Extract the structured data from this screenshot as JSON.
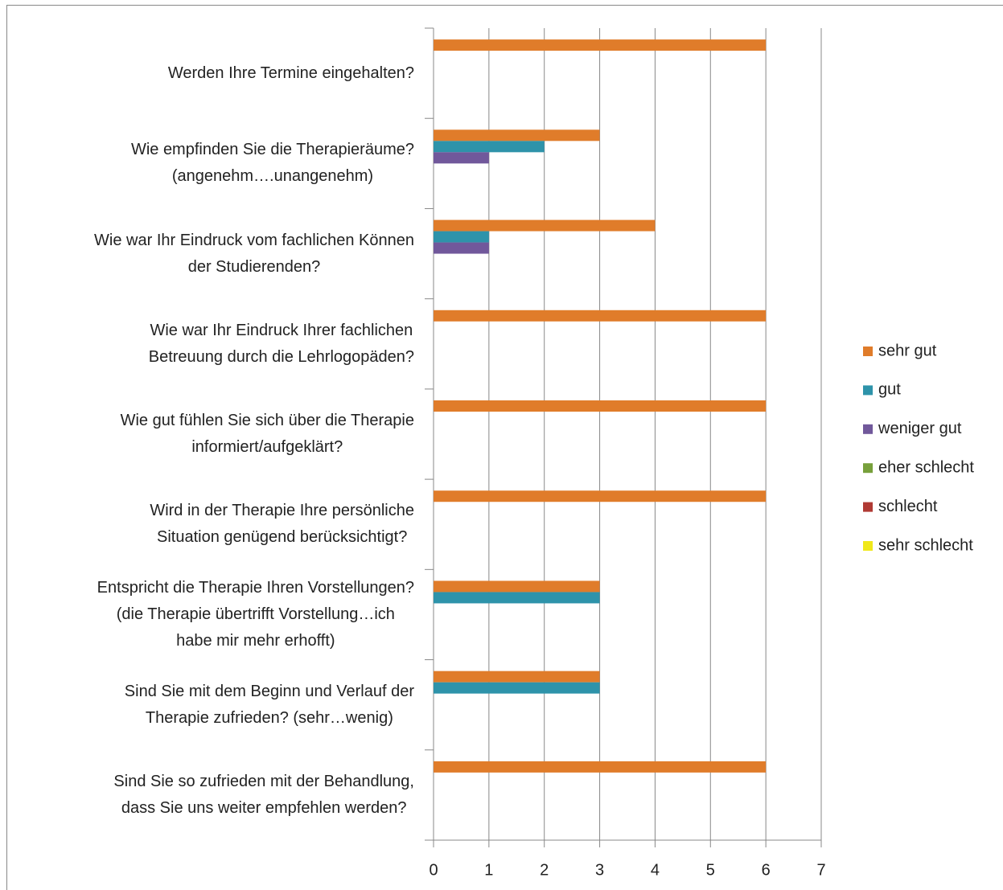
{
  "chart_data": {
    "type": "bar",
    "orientation": "horizontal",
    "categories": [
      "Werden Ihre Termine eingehalten?",
      "Wie empfinden Sie die Therapieräume?\n(angenehm….unangenehm)",
      "Wie war Ihr Eindruck vom fachlichen Können\nder Studierenden?",
      "Wie war Ihr Eindruck Ihrer fachlichen\nBetreuung durch die Lehrlogopäden?",
      "Wie gut fühlen Sie sich über die Therapie\ninformiert/aufgeklärt?",
      "Wird in der Therapie Ihre persönliche\nSituation genügend berücksichtigt?",
      "Entspricht die Therapie Ihren Vorstellungen?\n(die Therapie übertrifft Vorstellung…ich\nhabe mir mehr erhofft)",
      "Sind Sie mit dem Beginn und Verlauf der\nTherapie zufrieden? (sehr…wenig)",
      "Sind Sie so zufrieden mit der Behandlung,\ndass Sie uns weiter empfehlen werden?"
    ],
    "series": [
      {
        "name": "sehr gut",
        "color": "#e07c2a",
        "values": [
          6,
          3,
          4,
          6,
          6,
          6,
          3,
          3,
          6
        ]
      },
      {
        "name": "gut",
        "color": "#2e93aa",
        "values": [
          0,
          2,
          1,
          0,
          0,
          0,
          3,
          3,
          0
        ]
      },
      {
        "name": "weniger gut",
        "color": "#71589b",
        "values": [
          0,
          1,
          1,
          0,
          0,
          0,
          0,
          0,
          0
        ]
      },
      {
        "name": "eher schlecht",
        "color": "#77a03b",
        "values": [
          0,
          0,
          0,
          0,
          0,
          0,
          0,
          0,
          0
        ]
      },
      {
        "name": "schlecht",
        "color": "#b03a34",
        "values": [
          0,
          0,
          0,
          0,
          0,
          0,
          0,
          0,
          0
        ]
      },
      {
        "name": "sehr schlecht",
        "color": "#f0e81a",
        "values": [
          0,
          0,
          0,
          0,
          0,
          0,
          0,
          0,
          0
        ]
      }
    ],
    "xlim": [
      0,
      7
    ],
    "xticks": [
      0,
      1,
      2,
      3,
      4,
      5,
      6,
      7
    ],
    "grid": true,
    "legend": "right"
  }
}
